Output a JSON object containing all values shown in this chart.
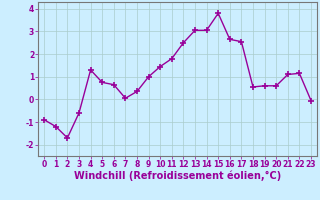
{
  "x": [
    0,
    1,
    2,
    3,
    4,
    5,
    6,
    7,
    8,
    9,
    10,
    11,
    12,
    13,
    14,
    15,
    16,
    17,
    18,
    19,
    20,
    21,
    22,
    23
  ],
  "y": [
    -0.9,
    -1.2,
    -1.7,
    -0.6,
    1.3,
    0.75,
    0.65,
    0.05,
    0.35,
    1.0,
    1.45,
    1.8,
    2.5,
    3.05,
    3.05,
    3.8,
    2.65,
    2.55,
    0.55,
    0.6,
    0.6,
    1.1,
    1.15,
    -0.05
  ],
  "line_color": "#990099",
  "marker": "+",
  "markersize": 4,
  "markeredgewidth": 1.2,
  "linewidth": 1.0,
  "xlabel": "Windchill (Refroidissement éolien,°C)",
  "xlabel_fontsize": 7,
  "bg_color": "#cceeff",
  "grid_color": "#aacccc",
  "ylim": [
    -2.5,
    4.3
  ],
  "xlim": [
    -0.5,
    23.5
  ],
  "yticks": [
    -2,
    -1,
    0,
    1,
    2,
    3,
    4
  ],
  "xticks": [
    0,
    1,
    2,
    3,
    4,
    5,
    6,
    7,
    8,
    9,
    10,
    11,
    12,
    13,
    14,
    15,
    16,
    17,
    18,
    19,
    20,
    21,
    22,
    23
  ],
  "tick_fontsize": 5.5,
  "tick_color": "#990099",
  "spine_color": "#777777"
}
